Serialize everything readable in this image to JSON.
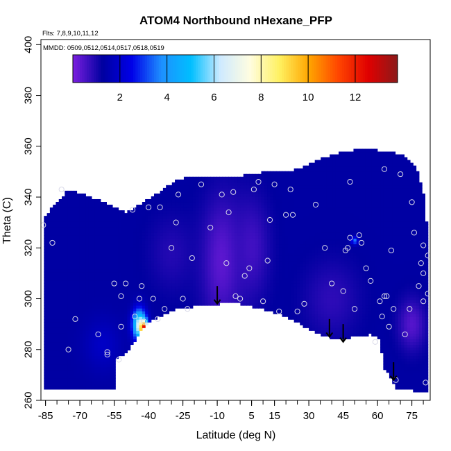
{
  "chart_data": {
    "type": "heatmap",
    "title": "ATOM4 Northbound nHexane_PFP",
    "xlabel": "Latitude (deg N)",
    "ylabel": "Theta (C)",
    "xlim": [
      -87,
      83
    ],
    "ylim": [
      260,
      402
    ],
    "x_ticks": [
      -85,
      -70,
      -55,
      -40,
      -25,
      -10,
      5,
      15,
      30,
      45,
      60,
      75
    ],
    "x_tick_labels": [
      "-85",
      "-70",
      "-55",
      "-40",
      "-25",
      "-10",
      "5",
      "15",
      "30",
      "45",
      "60",
      "75"
    ],
    "y_ticks": [
      260,
      280,
      300,
      320,
      340,
      360,
      380,
      400
    ],
    "y_tick_labels": [
      "260",
      "280",
      "300",
      "320",
      "340",
      "360",
      "380",
      "400"
    ],
    "flights_note": "Flts: 7,8,9,10,11,12",
    "dates_note": "MMDD: 0509,0512,0514,0517,0518,0519",
    "colorbar": {
      "min": 0,
      "max": 13.8,
      "ticks": [
        2,
        4,
        6,
        8,
        10,
        12
      ],
      "tick_labels": [
        "2",
        "4",
        "6",
        "8",
        "10",
        "12"
      ],
      "colors": [
        "#7b1fe0",
        "#0000a0",
        "#0000e8",
        "#1e90ff",
        "#00bfff",
        "#cfeaff",
        "#fffde0",
        "#fff060",
        "#ffa500",
        "#ff4500",
        "#e00000",
        "#8b1a1a"
      ]
    },
    "field": {
      "background_value": 1.3,
      "blobs": [
        {
          "lat": -8,
          "theta": 315,
          "value": 0.3,
          "radius_lat": 9,
          "radius_theta": 25
        },
        {
          "lat": 5,
          "theta": 320,
          "value": 0.6,
          "radius_lat": 8,
          "radius_theta": 20
        },
        {
          "lat": -30,
          "theta": 318,
          "value": 0.9,
          "radius_lat": 10,
          "radius_theta": 15
        },
        {
          "lat": 40,
          "theta": 300,
          "value": 0.8,
          "radius_lat": 12,
          "radius_theta": 15
        },
        {
          "lat": 75,
          "theta": 290,
          "value": 0.4,
          "radius_lat": 6,
          "radius_theta": 10
        },
        {
          "lat": -60,
          "theta": 282,
          "value": 1.9,
          "radius_lat": 8,
          "radius_theta": 10
        },
        {
          "lat": 50,
          "theta": 323,
          "value": 3.6,
          "radius_lat": 1.5,
          "radius_theta": 1.5
        },
        {
          "lat": -44,
          "theta": 290,
          "value": 6.5,
          "radius_lat": 3,
          "radius_theta": 6
        },
        {
          "lat": -42,
          "theta": 288,
          "value": 13.5,
          "radius_lat": 1.6,
          "radius_theta": 3
        }
      ],
      "top_boundary": [
        [
          -86,
          332
        ],
        [
          -75,
          343
        ],
        [
          -65,
          340
        ],
        [
          -50,
          334
        ],
        [
          -42,
          338
        ],
        [
          -35,
          342
        ],
        [
          -28,
          347
        ],
        [
          -20,
          348
        ],
        [
          -10,
          348
        ],
        [
          -2,
          348
        ],
        [
          5,
          349
        ],
        [
          12,
          350
        ],
        [
          20,
          350
        ],
        [
          28,
          352
        ],
        [
          35,
          355
        ],
        [
          45,
          358
        ],
        [
          55,
          359
        ],
        [
          65,
          358
        ],
        [
          72,
          356
        ],
        [
          77,
          352
        ],
        [
          80,
          342
        ],
        [
          82,
          325
        ],
        [
          82,
          263
        ]
      ],
      "bottom_boundary": [
        [
          82,
          263
        ],
        [
          75,
          264
        ],
        [
          68,
          264
        ],
        [
          65,
          271
        ],
        [
          63,
          272
        ],
        [
          61,
          284
        ],
        [
          57,
          286
        ],
        [
          50,
          285
        ],
        [
          44,
          284
        ],
        [
          38,
          285
        ],
        [
          30,
          288
        ],
        [
          20,
          293
        ],
        [
          10,
          296
        ],
        [
          0,
          298
        ],
        [
          -8,
          298
        ],
        [
          -20,
          297
        ],
        [
          -28,
          296
        ],
        [
          -33,
          294
        ],
        [
          -38,
          292
        ],
        [
          -43,
          288
        ],
        [
          -47,
          282
        ],
        [
          -50,
          279
        ],
        [
          -54,
          276
        ],
        [
          -55,
          264
        ],
        [
          -62,
          264
        ],
        [
          -75,
          264
        ],
        [
          -86,
          264
        ]
      ]
    },
    "samples": [
      [
        -86,
        329
      ],
      [
        -82,
        322
      ],
      [
        -78,
        343
      ],
      [
        -75,
        280
      ],
      [
        -72,
        292
      ],
      [
        -62,
        286
      ],
      [
        -58,
        278
      ],
      [
        -58,
        279
      ],
      [
        -55,
        306
      ],
      [
        -53,
        276
      ],
      [
        -52,
        301
      ],
      [
        -52,
        289
      ],
      [
        -50,
        306
      ],
      [
        -47,
        335
      ],
      [
        -46,
        293
      ],
      [
        -44,
        300
      ],
      [
        -43,
        305
      ],
      [
        -42,
        291
      ],
      [
        -40,
        336
      ],
      [
        -38,
        300
      ],
      [
        -36,
        292
      ],
      [
        -35,
        336
      ],
      [
        -33,
        296
      ],
      [
        -30,
        320
      ],
      [
        -28,
        330
      ],
      [
        -27,
        341
      ],
      [
        -25,
        300
      ],
      [
        -23,
        296
      ],
      [
        -21,
        316
      ],
      [
        -17,
        345
      ],
      [
        -13,
        328
      ],
      [
        -8,
        341
      ],
      [
        -6,
        314
      ],
      [
        -5,
        334
      ],
      [
        -3,
        342
      ],
      [
        -2,
        301
      ],
      [
        0,
        300
      ],
      [
        2,
        309
      ],
      [
        4,
        312
      ],
      [
        6,
        343
      ],
      [
        8,
        346
      ],
      [
        10,
        299
      ],
      [
        12,
        315
      ],
      [
        13,
        331
      ],
      [
        15,
        345
      ],
      [
        17,
        295
      ],
      [
        20,
        333
      ],
      [
        22,
        343
      ],
      [
        23,
        333
      ],
      [
        25,
        295
      ],
      [
        28,
        298
      ],
      [
        33,
        337
      ],
      [
        37,
        320
      ],
      [
        40,
        306
      ],
      [
        45,
        303
      ],
      [
        46,
        319
      ],
      [
        47,
        320
      ],
      [
        48,
        324
      ],
      [
        48,
        346
      ],
      [
        50,
        296
      ],
      [
        52,
        325
      ],
      [
        53,
        322
      ],
      [
        55,
        312
      ],
      [
        57,
        307
      ],
      [
        59,
        283
      ],
      [
        61,
        299
      ],
      [
        62,
        293
      ],
      [
        63,
        301
      ],
      [
        63,
        351
      ],
      [
        64,
        301
      ],
      [
        65,
        289
      ],
      [
        66,
        319
      ],
      [
        67,
        296
      ],
      [
        68,
        268
      ],
      [
        70,
        349
      ],
      [
        72,
        286
      ],
      [
        74,
        296
      ],
      [
        75,
        338
      ],
      [
        76,
        326
      ],
      [
        78,
        305
      ],
      [
        79,
        314
      ],
      [
        80,
        321
      ],
      [
        80,
        310
      ],
      [
        80,
        299
      ],
      [
        81,
        267
      ],
      [
        82,
        302
      ],
      [
        82,
        317
      ]
    ],
    "arrows": [
      {
        "lat": -10,
        "theta_top": 305,
        "theta_tip": 298
      },
      {
        "lat": 39,
        "theta_top": 292,
        "theta_tip": 285
      },
      {
        "lat": 45,
        "theta_top": 290,
        "theta_tip": 283
      },
      {
        "lat": 67,
        "theta_top": 275,
        "theta_tip": 268
      }
    ]
  }
}
